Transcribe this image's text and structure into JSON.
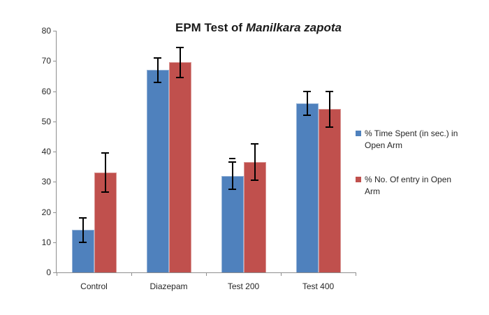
{
  "title": {
    "prefix": "EPM Test of",
    "species": "Manilkara zapota"
  },
  "chart_data": {
    "type": "bar",
    "title": "EPM Test of Manilkara zapota",
    "title_italic_part": "Manilkara zapota",
    "categories": [
      "Control",
      "Diazepam",
      "Test 200",
      "Test 400"
    ],
    "series": [
      {
        "name": "% Time Spent (in sec.) in Open Arm",
        "color": "#4F81BD",
        "border": "#95B3D7",
        "values": [
          14,
          67,
          32,
          56
        ],
        "errors": [
          4,
          4,
          4.5,
          4
        ]
      },
      {
        "name": "% No. Of entry in Open Arm",
        "color": "#C0504D",
        "border": "#D99694",
        "values": [
          33,
          69.5,
          36.5,
          54
        ],
        "errors": [
          6.5,
          5,
          6,
          6
        ]
      }
    ],
    "xlabel": "",
    "ylabel": "",
    "ylim": [
      0,
      80
    ],
    "yticks": [
      0,
      10,
      20,
      30,
      40,
      50,
      60,
      70,
      80
    ],
    "grid": false,
    "legend_position": "right",
    "error_bars": true,
    "extra_cap": {
      "series": 0,
      "category": 2
    },
    "colors": {
      "axis": "#8e8e8e",
      "error_bar": "#000000",
      "text": "#262626"
    }
  }
}
